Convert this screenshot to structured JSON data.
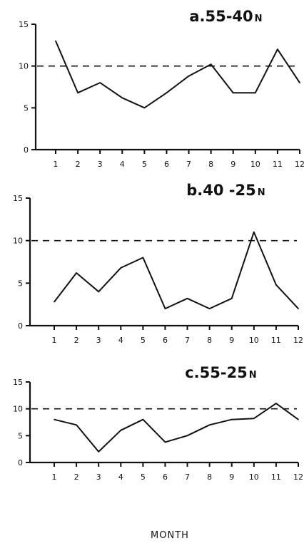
{
  "chart_data": [
    {
      "type": "line",
      "title": "a.55-40",
      "title_suffix": "N",
      "categories": [
        "1",
        "2",
        "3",
        "4",
        "5",
        "6",
        "7",
        "8",
        "9",
        "10",
        "11",
        "12"
      ],
      "values": [
        13,
        6.8,
        8,
        6.2,
        5,
        6.8,
        8.8,
        10.2,
        6.8,
        6.8,
        12,
        8
      ],
      "reference_line": 10,
      "ylim": [
        0,
        15
      ],
      "yticks": [
        "0",
        "5",
        "10",
        "15"
      ]
    },
    {
      "type": "line",
      "title": "b.40 -25",
      "title_suffix": "N",
      "categories": [
        "1",
        "2",
        "3",
        "4",
        "5",
        "6",
        "7",
        "8",
        "9",
        "10",
        "11",
        "12"
      ],
      "values": [
        2.8,
        6.2,
        4,
        6.8,
        8,
        2,
        3.2,
        2,
        3.2,
        11,
        4.8,
        2
      ],
      "reference_line": 10,
      "ylim": [
        0,
        15
      ],
      "yticks": [
        "0",
        "5",
        "10",
        "15"
      ]
    },
    {
      "type": "line",
      "title": "c.55-25",
      "title_suffix": "N",
      "categories": [
        "1",
        "2",
        "3",
        "4",
        "5",
        "6",
        "7",
        "8",
        "9",
        "10",
        "11",
        "12"
      ],
      "values": [
        8,
        7,
        2,
        6,
        8,
        3.8,
        5,
        7,
        8,
        8.2,
        11,
        8
      ],
      "reference_line": 10,
      "ylim": [
        0,
        15
      ],
      "yticks": [
        "0",
        "5",
        "10",
        "15"
      ]
    }
  ],
  "xlabel": "MONTH"
}
